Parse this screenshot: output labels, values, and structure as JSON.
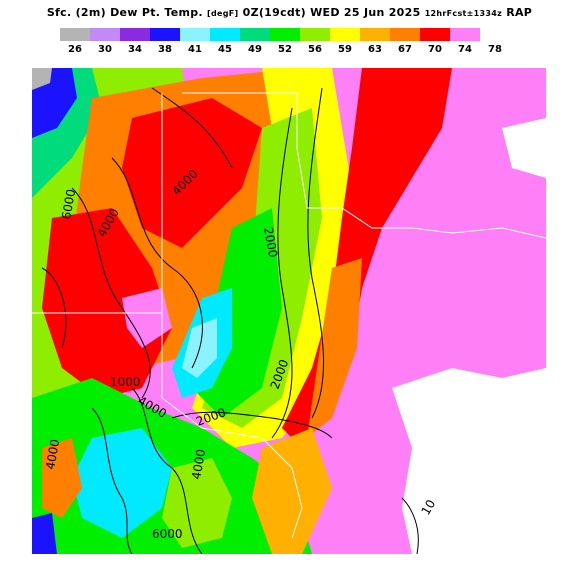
{
  "title": {
    "main": "Sfc. (2m) Dew Pt. Temp. ",
    "unit": "[degF]",
    "valid": " 0Z(19cdt) WED 25 Jun 2025 ",
    "forecast": "12hrFcst±1334z",
    "model": " RAP"
  },
  "legend": {
    "ticks": [
      "26",
      "30",
      "34",
      "38",
      "41",
      "45",
      "49",
      "52",
      "56",
      "59",
      "63",
      "67",
      "70",
      "74",
      "78"
    ],
    "colors": [
      "#b4b4b4",
      "#c18af6",
      "#8a2be2",
      "#1b13ff",
      "#8bf3ff",
      "#00eaff",
      "#00db7c",
      "#00ee00",
      "#8fee00",
      "#ffff00",
      "#ffb000",
      "#ff7f00",
      "#ff0000",
      "#ff7ff7"
    ]
  },
  "contours": {
    "labels": [
      "6000",
      "4000",
      "4000",
      "2000",
      "2000",
      "2000",
      "1000",
      "4000",
      "4000",
      "4000",
      "6000",
      "10"
    ]
  },
  "colors": {
    "background": "#ffffff",
    "contour": "#000000",
    "border": "#ffffff"
  }
}
